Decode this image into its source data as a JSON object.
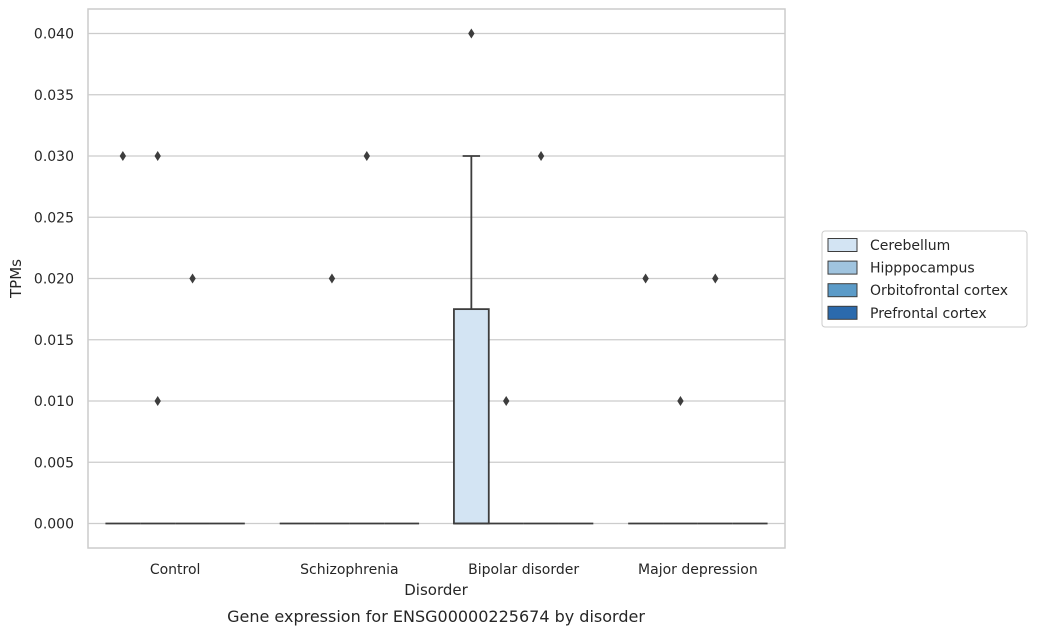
{
  "chart_data": {
    "type": "box",
    "caption": "Gene expression for ENSG00000225674 by disorder",
    "xlabel": "Disorder",
    "ylabel": "TPMs",
    "ylim": [
      -0.002,
      0.042
    ],
    "yticks": [
      "0.000",
      "0.005",
      "0.010",
      "0.015",
      "0.020",
      "0.025",
      "0.030",
      "0.035",
      "0.040"
    ],
    "ytick_values": [
      0,
      0.005,
      0.01,
      0.015,
      0.02,
      0.025,
      0.03,
      0.035,
      0.04
    ],
    "grid": true,
    "legend_placement": "right",
    "categories": [
      "Control",
      "Schizophrenia",
      "Bipolar disorder",
      "Major depression"
    ],
    "series": [
      {
        "name": "Cerebellum",
        "color": "#d3e4f3",
        "boxes": [
          {
            "q1": 0,
            "median": 0,
            "q3": 0,
            "whisker_low": 0,
            "whisker_high": 0,
            "outliers": [
              0.03
            ]
          },
          {
            "q1": 0,
            "median": 0,
            "q3": 0,
            "whisker_low": 0,
            "whisker_high": 0,
            "outliers": []
          },
          {
            "q1": 0,
            "median": 0,
            "q3": 0.0175,
            "whisker_low": 0,
            "whisker_high": 0.03,
            "outliers": [
              0.04
            ]
          },
          {
            "q1": 0,
            "median": 0,
            "q3": 0,
            "whisker_low": 0,
            "whisker_high": 0,
            "outliers": [
              0.02
            ]
          }
        ]
      },
      {
        "name": "Hipppocampus",
        "color": "#a0c4df",
        "boxes": [
          {
            "q1": 0,
            "median": 0,
            "q3": 0,
            "whisker_low": 0,
            "whisker_high": 0,
            "outliers": [
              0.03,
              0.01
            ]
          },
          {
            "q1": 0,
            "median": 0,
            "q3": 0,
            "whisker_low": 0,
            "whisker_high": 0,
            "outliers": [
              0.02
            ]
          },
          {
            "q1": 0,
            "median": 0,
            "q3": 0,
            "whisker_low": 0,
            "whisker_high": 0,
            "outliers": [
              0.01
            ]
          },
          {
            "q1": 0,
            "median": 0,
            "q3": 0,
            "whisker_low": 0,
            "whisker_high": 0,
            "outliers": [
              0.01
            ]
          }
        ]
      },
      {
        "name": "Orbitofrontal cortex",
        "color": "#5b9bc8",
        "boxes": [
          {
            "q1": 0,
            "median": 0,
            "q3": 0,
            "whisker_low": 0,
            "whisker_high": 0,
            "outliers": [
              0.02
            ]
          },
          {
            "q1": 0,
            "median": 0,
            "q3": 0,
            "whisker_low": 0,
            "whisker_high": 0,
            "outliers": [
              0.03
            ]
          },
          {
            "q1": 0,
            "median": 0,
            "q3": 0,
            "whisker_low": 0,
            "whisker_high": 0,
            "outliers": [
              0.03
            ]
          },
          {
            "q1": 0,
            "median": 0,
            "q3": 0,
            "whisker_low": 0,
            "whisker_high": 0,
            "outliers": [
              0.02
            ]
          }
        ]
      },
      {
        "name": "Prefrontal cortex",
        "color": "#2b6aad",
        "boxes": [
          {
            "q1": 0,
            "median": 0,
            "q3": 0,
            "whisker_low": 0,
            "whisker_high": 0,
            "outliers": []
          },
          {
            "q1": 0,
            "median": 0,
            "q3": 0,
            "whisker_low": 0,
            "whisker_high": 0,
            "outliers": []
          },
          {
            "q1": 0,
            "median": 0,
            "q3": 0,
            "whisker_low": 0,
            "whisker_high": 0,
            "outliers": []
          },
          {
            "q1": 0,
            "median": 0,
            "q3": 0,
            "whisker_low": 0,
            "whisker_high": 0,
            "outliers": []
          }
        ]
      }
    ]
  }
}
